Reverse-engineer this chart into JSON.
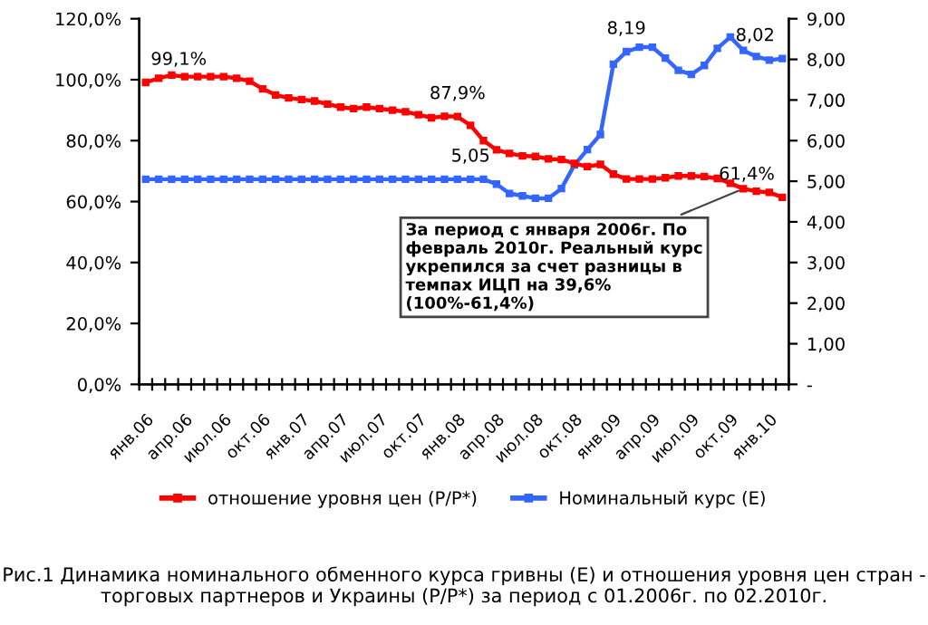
{
  "chart_data": {
    "type": "line",
    "title": "Рис.1 Динамика номинального обменного курса гривны (E) и отношения уровня цен стран - торговых партнеров и Украины (P/P*) за период с 01.2006г. по 02.2010г.",
    "categories": [
      "янв.06",
      null,
      null,
      "апр.06",
      null,
      null,
      "июл.06",
      null,
      null,
      "окт.06",
      null,
      null,
      "янв.07",
      null,
      null,
      "апр.07",
      null,
      null,
      "июл.07",
      null,
      null,
      "окт.07",
      null,
      null,
      "янв.08",
      null,
      null,
      "апр.08",
      null,
      null,
      "июл.08",
      null,
      null,
      "окт.08",
      null,
      null,
      "янв.09",
      null,
      null,
      "апр.09",
      null,
      null,
      "июл.09",
      null,
      null,
      "окт.09",
      null,
      null,
      "янв.10",
      null
    ],
    "series": [
      {
        "name": "отношение уровня цен (P/P*)",
        "color": "#ff0000",
        "values": [
          99.1,
          100.5,
          101.5,
          101,
          101,
          101,
          101,
          100.5,
          99.5,
          97,
          95,
          94,
          93.5,
          93,
          92,
          91,
          90.5,
          91,
          90.5,
          90,
          89.5,
          88.5,
          87.5,
          88,
          87.9,
          85,
          80,
          77,
          75.8,
          75,
          74.8,
          74,
          73.8,
          72.5,
          71.5,
          72.2,
          69,
          67.4,
          67.4,
          67.4,
          67.8,
          68.4,
          68.4,
          68.2,
          67.6,
          66,
          64.2,
          63.4,
          63,
          61.4
        ],
        "value_labels": [
          "99,1%",
          null,
          null,
          null,
          null,
          null,
          null,
          null,
          null,
          null,
          null,
          null,
          null,
          null,
          null,
          null,
          null,
          null,
          null,
          null,
          null,
          null,
          null,
          null,
          "87,9%",
          null,
          null,
          null,
          null,
          null,
          null,
          null,
          null,
          null,
          null,
          null,
          null,
          null,
          null,
          null,
          null,
          null,
          null,
          null,
          null,
          null,
          null,
          null,
          null,
          "61,4%"
        ]
      },
      {
        "name": "Номинальный курс (E)",
        "color": "#3366ff",
        "axis": "y2",
        "values": [
          5.05,
          5.05,
          5.05,
          5.05,
          5.05,
          5.05,
          5.05,
          5.05,
          5.05,
          5.05,
          5.05,
          5.05,
          5.05,
          5.05,
          5.05,
          5.05,
          5.05,
          5.05,
          5.05,
          5.05,
          5.05,
          5.05,
          5.05,
          5.05,
          5.05,
          5.05,
          5.05,
          4.93,
          4.7,
          4.64,
          4.58,
          4.58,
          4.82,
          5.4,
          5.78,
          6.15,
          7.88,
          8.19,
          8.3,
          8.3,
          8.03,
          7.73,
          7.63,
          7.85,
          8.27,
          8.55,
          8.22,
          8.07,
          7.98,
          8.02
        ],
        "value_labels": [
          null,
          null,
          null,
          null,
          null,
          null,
          null,
          null,
          null,
          null,
          null,
          null,
          null,
          null,
          null,
          null,
          null,
          null,
          null,
          null,
          null,
          null,
          null,
          null,
          null,
          "5,05",
          null,
          null,
          null,
          null,
          null,
          null,
          null,
          null,
          null,
          null,
          null,
          "8,19",
          null,
          null,
          null,
          null,
          null,
          null,
          null,
          null,
          null,
          null,
          null,
          "8,02"
        ]
      }
    ],
    "ylim": [
      0,
      120
    ],
    "yticks": [
      {
        "value": 0,
        "label": "0,0%"
      },
      {
        "value": 20,
        "label": "20,0%"
      },
      {
        "value": 40,
        "label": "40,0%"
      },
      {
        "value": 60,
        "label": "60,0%"
      },
      {
        "value": 80,
        "label": "80,0%"
      },
      {
        "value": 100,
        "label": "100,0%"
      },
      {
        "value": 120,
        "label": "120,0%"
      }
    ],
    "y2lim": [
      0,
      9
    ],
    "y2ticks": [
      {
        "value": 0,
        "label": "-"
      },
      {
        "value": 1,
        "label": "1,00"
      },
      {
        "value": 2,
        "label": "2,00"
      },
      {
        "value": 3,
        "label": "3,00"
      },
      {
        "value": 4,
        "label": "4,00"
      },
      {
        "value": 5,
        "label": "5,00"
      },
      {
        "value": 6,
        "label": "6,00"
      },
      {
        "value": 7,
        "label": "7,00"
      },
      {
        "value": 8,
        "label": "8,00"
      },
      {
        "value": 9,
        "label": "9,00"
      }
    ],
    "annotations": [
      {
        "text": "За период с января 2006г. По февраль 2010г. Реальный курс укрепился за счет разницы в темпах ИЦП на 39,6% (100%-61,4%)",
        "y": 64.2
      }
    ],
    "marker": "square",
    "line_style": "solid",
    "grid": false,
    "legend": "bottom"
  }
}
